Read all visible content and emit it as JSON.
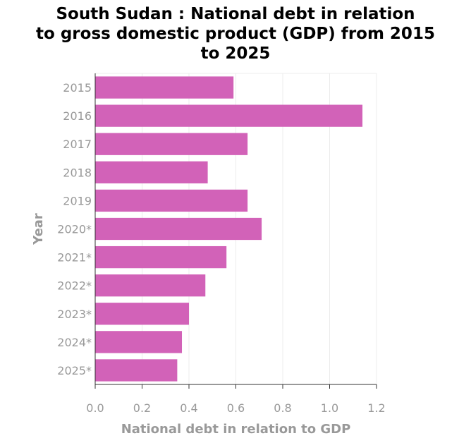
{
  "chart_data": {
    "type": "bar",
    "orientation": "horizontal",
    "title_lines": [
      "South Sudan : National debt in relation",
      "to gross domestic product (GDP) from 2015",
      "to 2025"
    ],
    "title": "South Sudan : National debt in relation to gross domestic product (GDP) from 2015 to 2025",
    "xlabel": "National debt in relation to GDP",
    "ylabel": "Year",
    "categories": [
      "2015",
      "2016",
      "2017",
      "2018",
      "2019",
      "2020*",
      "2021*",
      "2022*",
      "2023*",
      "2024*",
      "2025*"
    ],
    "values": [
      0.59,
      1.14,
      0.65,
      0.48,
      0.65,
      0.71,
      0.56,
      0.47,
      0.4,
      0.37,
      0.35
    ],
    "xlim": [
      0,
      1.2
    ],
    "xticks": [
      "0.0",
      "0.2",
      "0.4",
      "0.6",
      "0.8",
      "1.0",
      "1.2"
    ],
    "grid": true,
    "bar_color": "#d262b8"
  }
}
